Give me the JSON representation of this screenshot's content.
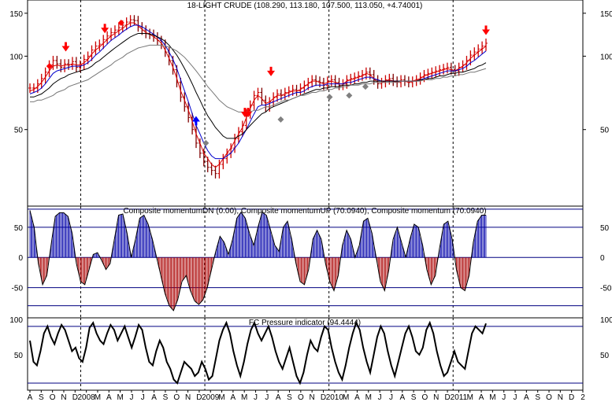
{
  "chart_data": [
    {
      "type": "ohlc",
      "title": "18-LIGHT CRUDE (108.290, 113.180, 107.500, 113.050, +4.74001)",
      "y_ticks": [
        50,
        100,
        150
      ],
      "ylim": [
        25,
        165
      ],
      "log_scale": true,
      "colors": {
        "bars_up": "#cc0000",
        "bars_down": "#800000",
        "ma_fast": "#dd0000",
        "ma_mid": "#0000cc",
        "ma_slow": "#000000",
        "ma_long": "#777777"
      },
      "series": [
        {
          "role": "close",
          "values": [
            74,
            74,
            77,
            81,
            86,
            92,
            96,
            93,
            90,
            93,
            92,
            95,
            90,
            92,
            97,
            100,
            106,
            110,
            112,
            117,
            121,
            125,
            128,
            131,
            134,
            138,
            141,
            140,
            132,
            128,
            124,
            123,
            120,
            116,
            112,
            104,
            96,
            88,
            78,
            68,
            62,
            56,
            50,
            44,
            40,
            37,
            35,
            34,
            33,
            36,
            38,
            40,
            42,
            46,
            49,
            52,
            58,
            63,
            69,
            71,
            66,
            62,
            65,
            68,
            70,
            69,
            71,
            72,
            73,
            72,
            74,
            76,
            78,
            80,
            79,
            78,
            76,
            79,
            80,
            78,
            76,
            77,
            80,
            81,
            82,
            83,
            84,
            86,
            84,
            80,
            77,
            78,
            80,
            81,
            79,
            78,
            80,
            79,
            78,
            79,
            80,
            82,
            84,
            85,
            86,
            87,
            88,
            89,
            90,
            88,
            87,
            90,
            92,
            96,
            101,
            104,
            107,
            110,
            113
          ]
        },
        {
          "role": "ma-fast",
          "values": [
            72,
            73,
            75,
            78,
            82,
            87,
            91,
            92,
            91,
            92,
            92,
            93,
            92,
            92,
            94,
            97,
            102,
            106,
            109,
            113,
            117,
            121,
            124,
            127,
            130,
            134,
            137,
            137,
            133,
            129,
            125,
            123,
            120,
            117,
            113,
            106,
            98,
            90,
            81,
            72,
            66,
            60,
            54,
            48,
            44,
            40,
            38,
            36,
            35,
            36,
            38,
            40,
            42,
            45,
            48,
            51,
            56,
            61,
            66,
            69,
            67,
            64,
            65,
            67,
            69,
            69,
            70,
            71,
            72,
            72,
            73,
            75,
            77,
            79,
            79,
            78,
            77,
            78,
            79,
            78,
            77,
            77,
            79,
            80,
            81,
            82,
            83,
            85,
            84,
            81,
            78,
            78,
            79,
            80,
            79,
            78,
            79,
            79,
            78,
            79,
            80,
            81,
            83,
            84,
            85,
            86,
            87,
            88,
            89,
            88,
            87,
            89,
            91,
            94,
            98,
            101,
            104,
            107,
            110
          ]
        },
        {
          "role": "ma-mid",
          "values": [
            70,
            71,
            72,
            74,
            77,
            81,
            85,
            87,
            88,
            89,
            90,
            91,
            91,
            91,
            92,
            94,
            97,
            101,
            104,
            108,
            112,
            116,
            119,
            122,
            126,
            129,
            132,
            134,
            134,
            132,
            129,
            126,
            123,
            120,
            116,
            111,
            104,
            97,
            89,
            80,
            72,
            65,
            58,
            52,
            48,
            44,
            41,
            39,
            38,
            38,
            38,
            39,
            40,
            42,
            44,
            47,
            50,
            54,
            58,
            62,
            63,
            63,
            64,
            65,
            66,
            67,
            68,
            69,
            70,
            71,
            71,
            72,
            74,
            75,
            76,
            76,
            76,
            77,
            77,
            77,
            77,
            77,
            78,
            78,
            79,
            80,
            81,
            82,
            82,
            81,
            80,
            79,
            79,
            79,
            79,
            79,
            79,
            79,
            79,
            79,
            79,
            80,
            81,
            82,
            83,
            84,
            85,
            86,
            87,
            87,
            87,
            88,
            89,
            91,
            94,
            96,
            99,
            102,
            105
          ]
        },
        {
          "role": "ma-slow",
          "values": [
            68,
            68,
            69,
            70,
            72,
            74,
            77,
            79,
            81,
            82,
            84,
            85,
            86,
            87,
            88,
            89,
            91,
            94,
            96,
            99,
            102,
            105,
            108,
            111,
            114,
            117,
            120,
            122,
            124,
            124,
            124,
            123,
            122,
            120,
            118,
            115,
            111,
            106,
            101,
            95,
            89,
            83,
            77,
            71,
            66,
            61,
            57,
            54,
            51,
            49,
            47,
            46,
            46,
            46,
            47,
            48,
            50,
            52,
            54,
            56,
            58,
            59,
            61,
            62,
            63,
            64,
            65,
            66,
            67,
            68,
            69,
            70,
            71,
            72,
            73,
            73,
            74,
            74,
            75,
            75,
            75,
            76,
            76,
            76,
            77,
            77,
            78,
            78,
            79,
            79,
            79,
            79,
            79,
            79,
            79,
            79,
            79,
            79,
            79,
            79,
            79,
            80,
            80,
            81,
            81,
            82,
            83,
            83,
            84,
            85,
            85,
            86,
            86,
            87,
            88,
            89,
            91,
            92,
            94
          ]
        },
        {
          "role": "ma-long",
          "values": [
            65,
            65,
            66,
            66,
            67,
            68,
            69,
            71,
            72,
            73,
            75,
            76,
            77,
            78,
            79,
            80,
            82,
            84,
            86,
            88,
            90,
            92,
            95,
            97,
            99,
            102,
            104,
            106,
            108,
            109,
            110,
            111,
            111,
            111,
            111,
            110,
            109,
            107,
            105,
            102,
            99,
            95,
            91,
            87,
            83,
            79,
            75,
            72,
            69,
            66,
            64,
            62,
            61,
            60,
            59,
            59,
            59,
            59,
            60,
            60,
            61,
            62,
            62,
            63,
            64,
            65,
            66,
            66,
            67,
            68,
            69,
            69,
            70,
            71,
            71,
            72,
            72,
            73,
            73,
            74,
            74,
            75,
            75,
            76,
            76,
            76,
            77,
            77,
            77,
            78,
            78,
            78,
            78,
            78,
            78,
            78,
            79,
            79,
            79,
            79,
            79,
            79,
            80,
            80,
            80,
            81,
            81,
            82,
            82,
            83,
            83,
            84,
            84,
            85,
            86,
            86,
            87,
            88,
            89
          ]
        }
      ],
      "markers": [
        {
          "shape": "diamond",
          "color": "#ff0000",
          "bar": 6,
          "value": 91
        },
        {
          "shape": "arrow-down",
          "color": "#ff0000",
          "bar": 11,
          "value": 106
        },
        {
          "shape": "arrow-down",
          "color": "#ff0000",
          "bar": 23,
          "value": 126
        },
        {
          "shape": "diamond",
          "color": "#ff0000",
          "bar": 28,
          "value": 137
        },
        {
          "shape": "arrow-up",
          "color": "#0000ff",
          "bar": 51,
          "value": 56
        },
        {
          "shape": "diamond",
          "color": "#808080",
          "bar": 54,
          "value": 44
        },
        {
          "shape": "arrow-down",
          "color": "#ff0000",
          "bar": 66,
          "value": 57
        },
        {
          "shape": "arrow-down",
          "color": "#ff0000",
          "bar": 67,
          "value": 57
        },
        {
          "shape": "diamond",
          "color": "#808080",
          "bar": 77,
          "value": 55
        },
        {
          "shape": "arrow-down",
          "color": "#ff0000",
          "bar": 74,
          "value": 84
        },
        {
          "shape": "diamond",
          "color": "#808080",
          "bar": 92,
          "value": 68
        },
        {
          "shape": "diamond",
          "color": "#808080",
          "bar": 98,
          "value": 69
        },
        {
          "shape": "diamond",
          "color": "#808080",
          "bar": 103,
          "value": 75
        },
        {
          "shape": "arrow-down",
          "color": "#ff0000",
          "bar": 140,
          "value": 124
        }
      ]
    },
    {
      "type": "histogram",
      "title": "Composite momentumDN (0.00), Composite momentumUP (70.0940), Composite momentum (70.0940)",
      "y_ticks": [
        -50,
        0,
        50
      ],
      "ylim": [
        -100,
        85
      ],
      "reference_lines": [
        80,
        50,
        -50,
        -80
      ],
      "colors": {
        "positive": "#0000aa",
        "negative": "#aa0000",
        "outline": "#000000"
      },
      "values": [
        78,
        50,
        -10,
        -45,
        -30,
        20,
        68,
        74,
        74,
        68,
        40,
        -10,
        -40,
        -45,
        -20,
        5,
        8,
        -5,
        -20,
        -10,
        30,
        70,
        72,
        40,
        0,
        30,
        65,
        70,
        55,
        30,
        0,
        -30,
        -60,
        -80,
        -88,
        -70,
        -40,
        -30,
        -55,
        -72,
        -78,
        -70,
        -50,
        -20,
        10,
        35,
        25,
        5,
        30,
        65,
        75,
        65,
        40,
        20,
        50,
        75,
        70,
        45,
        20,
        10,
        50,
        60,
        30,
        -10,
        -40,
        -45,
        -20,
        30,
        45,
        30,
        -10,
        -40,
        -55,
        -30,
        20,
        45,
        30,
        0,
        20,
        60,
        65,
        40,
        0,
        -40,
        -55,
        -20,
        30,
        50,
        25,
        0,
        30,
        55,
        50,
        20,
        -20,
        -45,
        -30,
        15,
        55,
        60,
        30,
        -20,
        -50,
        -55,
        -30,
        25,
        60,
        70,
        70
      ],
      "last_value": 70.094
    },
    {
      "type": "line",
      "title": "FC Pressure indicator (94.4444)",
      "y_ticks": [
        50,
        100
      ],
      "ylim": [
        0,
        102
      ],
      "reference_lines": [
        90,
        10
      ],
      "colors": {
        "line": "#000000",
        "ref": "#000080"
      },
      "values": [
        70,
        40,
        35,
        55,
        80,
        90,
        75,
        65,
        80,
        92,
        85,
        70,
        55,
        60,
        45,
        40,
        60,
        88,
        95,
        80,
        70,
        65,
        80,
        92,
        85,
        70,
        80,
        90,
        75,
        60,
        75,
        92,
        85,
        60,
        40,
        35,
        55,
        70,
        60,
        40,
        30,
        15,
        10,
        25,
        40,
        35,
        30,
        20,
        25,
        40,
        30,
        15,
        20,
        45,
        70,
        85,
        95,
        80,
        55,
        35,
        20,
        40,
        65,
        85,
        95,
        80,
        70,
        80,
        90,
        75,
        55,
        40,
        30,
        45,
        60,
        40,
        20,
        10,
        25,
        50,
        70,
        60,
        55,
        75,
        90,
        85,
        60,
        40,
        25,
        15,
        35,
        60,
        80,
        95,
        85,
        60,
        40,
        25,
        50,
        75,
        90,
        80,
        55,
        35,
        20,
        40,
        60,
        80,
        90,
        75,
        55,
        50,
        60,
        85,
        95,
        80,
        55,
        35,
        20,
        25,
        40,
        55,
        40,
        35,
        30,
        55,
        80,
        90,
        85,
        80,
        94
      ],
      "last_value": 94.4444
    }
  ],
  "x_axis": {
    "labels": [
      "A",
      "S",
      "O",
      "N",
      "D",
      "2008",
      "M",
      "A",
      "M",
      "J",
      "J",
      "A",
      "S",
      "O",
      "N",
      "D",
      "2009",
      "M",
      "A",
      "M",
      "J",
      "J",
      "A",
      "S",
      "O",
      "N",
      "D",
      "2010",
      "M",
      "A",
      "M",
      "J",
      "J",
      "A",
      "S",
      "O",
      "N",
      "D",
      "2011",
      "M",
      "A",
      "M",
      "J",
      "J",
      "A",
      "S",
      "O",
      "N",
      "D",
      "2"
    ],
    "year_markers": [
      "2008",
      "2009",
      "2010",
      "2011"
    ]
  }
}
